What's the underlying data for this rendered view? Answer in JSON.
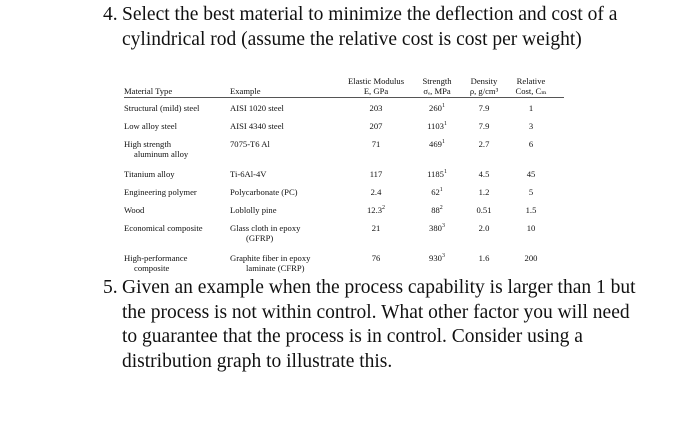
{
  "q4": {
    "number": "4.",
    "text": "Select the best material to minimize the deflection and cost of a cylindrical rod (assume the relative cost is cost per weight)"
  },
  "table": {
    "headers": {
      "material": "Material Type",
      "example": "Example",
      "modulus_l1": "Elastic Modulus",
      "modulus_l2": "E, GPa",
      "strength_l1": "Strength",
      "strength_l2": "σₑ, MPa",
      "density_l1": "Density",
      "density_l2": "ρ, g/cm³",
      "cost_l1": "Relative",
      "cost_l2": "Cost, Cₘ"
    },
    "rows": [
      {
        "type": [
          "Structural (mild) steel"
        ],
        "example": [
          "AISI 1020 steel"
        ],
        "modulus": "203",
        "strength": "260",
        "strength_sup": "1",
        "density": "7.9",
        "cost": "1"
      },
      {
        "type": [
          "Low alloy steel"
        ],
        "example": [
          "AISI 4340 steel"
        ],
        "modulus": "207",
        "strength": "1103",
        "strength_sup": "1",
        "density": "7.9",
        "cost": "3"
      },
      {
        "type": [
          "High strength",
          "aluminum alloy"
        ],
        "example": [
          "7075-T6 Al"
        ],
        "modulus": "71",
        "strength": "469",
        "strength_sup": "1",
        "density": "2.7",
        "cost": "6"
      },
      {
        "type": [
          "Titanium alloy"
        ],
        "example": [
          "Ti-6Al-4V"
        ],
        "modulus": "117",
        "strength": "1185",
        "strength_sup": "1",
        "density": "4.5",
        "cost": "45"
      },
      {
        "type": [
          "Engineering polymer"
        ],
        "example": [
          "Polycarbonate (PC)"
        ],
        "modulus": "2.4",
        "strength": "62",
        "strength_sup": "1",
        "density": "1.2",
        "cost": "5"
      },
      {
        "type": [
          "Wood"
        ],
        "example": [
          "Loblolly pine"
        ],
        "modulus": "12.3",
        "modulus_sup": "2",
        "strength": "88",
        "strength_sup": "2",
        "density": "0.51",
        "cost": "1.5"
      },
      {
        "type": [
          "Economical composite"
        ],
        "example": [
          "Glass cloth in epoxy",
          "(GFRP)"
        ],
        "modulus": "21",
        "strength": "380",
        "strength_sup": "3",
        "density": "2.0",
        "cost": "10"
      },
      {
        "type": [
          "High-performance",
          "composite"
        ],
        "example": [
          "Graphite fiber in epoxy",
          "laminate (CFRP)"
        ],
        "modulus": "76",
        "strength": "930",
        "strength_sup": "3",
        "density": "1.6",
        "cost": "200"
      }
    ]
  },
  "q5": {
    "number": "5.",
    "text": "Given an example when the process capability is larger than 1 but the process is not within control. What other factor you will need to guarantee that the process is in control. Consider using a distribution graph to illustrate this."
  }
}
